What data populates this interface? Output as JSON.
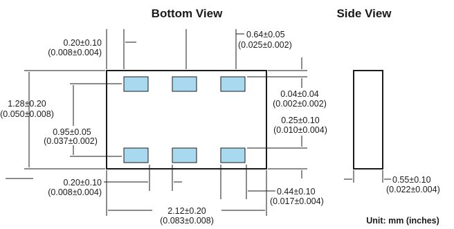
{
  "headings": {
    "bottom_view": "Bottom View",
    "side_view": "Side View"
  },
  "dimensions": {
    "pad_gap_left": {
      "mm": "0.20±0.10",
      "inches": "(0.008±0.004)"
    },
    "pad_width": {
      "mm": "0.64±0.05",
      "inches": "(0.025±0.002)"
    },
    "overall_height": {
      "mm": "1.28±0.20",
      "inches": "(0.050±0.008)"
    },
    "pad_pitch": {
      "mm": "0.95±0.05",
      "inches": "(0.037±0.002)"
    },
    "pad_offset": {
      "mm": "0.04±0.04",
      "inches": "(0.002±0.002)"
    },
    "pad_height": {
      "mm": "0.25±0.10",
      "inches": "(0.010±0.004)"
    },
    "pad_gap_bottom": {
      "mm": "0.20±0.10",
      "inches": "(0.008±0.004)"
    },
    "pad_edge": {
      "mm": "0.44±0.10",
      "inches": "(0.017±0.004)"
    },
    "overall_width": {
      "mm": "2.12±0.20",
      "inches": "(0.083±0.008)"
    },
    "thickness": {
      "mm": "0.55±0.10",
      "inches": "(0.022±0.004)"
    }
  },
  "unit_note": "Unit: mm (inches)",
  "colors": {
    "pad_fill": "#a9d9ef",
    "line": "#1a1a1a"
  }
}
